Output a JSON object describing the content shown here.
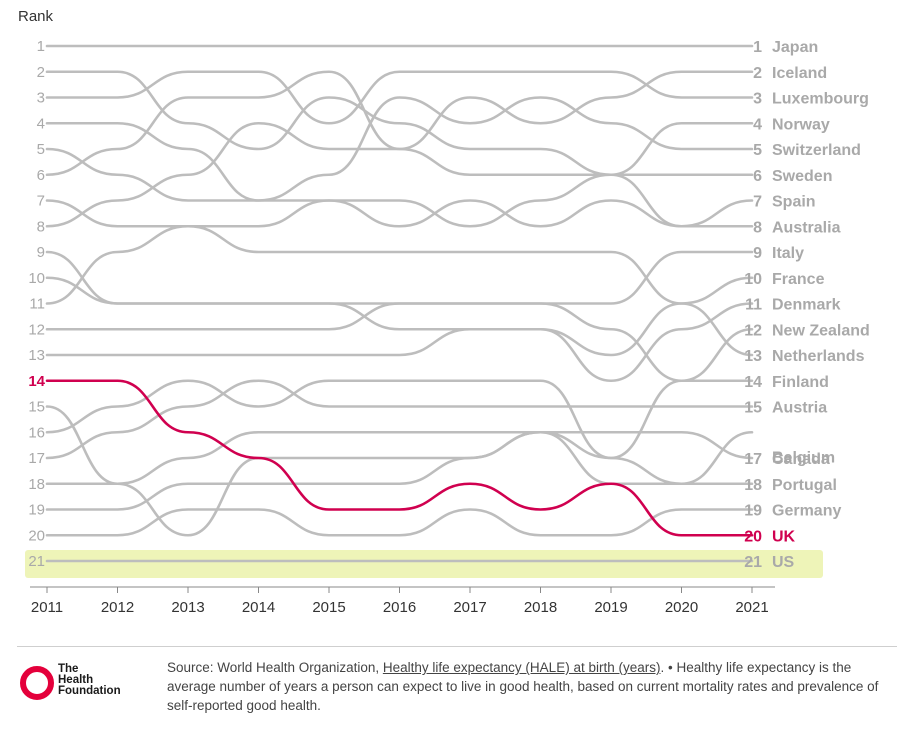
{
  "chart_data": {
    "type": "line",
    "subtype": "bump",
    "ylabel": "Rank",
    "years": [
      "2011",
      "2012",
      "2013",
      "2014",
      "2015",
      "2016",
      "2017",
      "2018",
      "2019",
      "2020",
      "2021"
    ],
    "ranks": [
      1,
      2,
      3,
      4,
      5,
      6,
      7,
      8,
      9,
      10,
      11,
      12,
      13,
      14,
      15,
      16,
      17,
      18,
      19,
      20,
      21
    ],
    "series": [
      {
        "name": "Japan",
        "values": [
          1,
          1,
          1,
          1,
          1,
          1,
          1,
          1,
          1,
          1,
          1
        ]
      },
      {
        "name": "Iceland",
        "values": [
          6,
          5,
          3,
          3,
          2,
          5,
          3,
          4,
          3,
          2,
          2
        ]
      },
      {
        "name": "Luxembourg",
        "values": [
          3,
          3,
          2,
          2,
          4,
          2,
          2,
          2,
          2,
          3,
          3
        ]
      },
      {
        "name": "Norway",
        "values": [
          2,
          2,
          4,
          5,
          3,
          4,
          5,
          5,
          6,
          4,
          4
        ]
      },
      {
        "name": "Switzerland",
        "values": [
          4,
          4,
          5,
          7,
          6,
          3,
          4,
          3,
          4,
          5,
          5
        ]
      },
      {
        "name": "Sweden",
        "values": [
          8,
          7,
          6,
          4,
          5,
          5,
          6,
          6,
          6,
          6,
          6
        ]
      },
      {
        "name": "Spain",
        "values": [
          7,
          8,
          8,
          8,
          7,
          8,
          7,
          8,
          7,
          8,
          7
        ]
      },
      {
        "name": "Australia",
        "values": [
          5,
          6,
          7,
          7,
          7,
          7,
          8,
          7,
          6,
          8,
          8
        ]
      },
      {
        "name": "Italy",
        "values": [
          9,
          11,
          11,
          11,
          11,
          11,
          11,
          11,
          11,
          9,
          9
        ]
      },
      {
        "name": "France",
        "values": [
          11,
          9,
          8,
          9,
          9,
          9,
          9,
          9,
          9,
          11,
          10
        ]
      },
      {
        "name": "Denmark",
        "values": [
          10,
          11,
          11,
          11,
          11,
          12,
          12,
          12,
          14,
          12,
          11
        ]
      },
      {
        "name": "New Zealand",
        "values": [
          12,
          12,
          12,
          12,
          12,
          11,
          11,
          11,
          12,
          14,
          12
        ]
      },
      {
        "name": "Netherlands",
        "values": [
          13,
          13,
          13,
          13,
          13,
          13,
          12,
          12,
          13,
          11,
          13
        ]
      },
      {
        "name": "Finland",
        "values": [
          16,
          15,
          14,
          15,
          14,
          14,
          14,
          14,
          17,
          14,
          14
        ]
      },
      {
        "name": "Austria",
        "values": [
          17,
          16,
          15,
          14,
          15,
          15,
          15,
          15,
          15,
          15,
          15
        ]
      },
      {
        "name": "Belgium",
        "values": [
          15,
          18,
          20,
          17,
          17,
          17,
          17,
          16,
          17,
          18,
          16
        ]
      },
      {
        "name": "Canada",
        "values": [
          18,
          18,
          17,
          16,
          16,
          16,
          16,
          16,
          16,
          16,
          17
        ]
      },
      {
        "name": "Portugal",
        "values": [
          19,
          19,
          18,
          18,
          18,
          18,
          17,
          16,
          18,
          18,
          18
        ]
      },
      {
        "name": "Germany",
        "values": [
          20,
          20,
          19,
          19,
          20,
          20,
          19,
          20,
          20,
          19,
          19
        ]
      },
      {
        "name": "UK",
        "values": [
          14,
          14,
          16,
          17,
          19,
          19,
          18,
          19,
          18,
          20,
          20
        ],
        "highlight": true,
        "color": "#d0004f"
      },
      {
        "name": "US",
        "values": [
          21,
          21,
          21,
          21,
          21,
          21,
          21,
          21,
          21,
          21,
          21
        ],
        "band": true,
        "band_color": "#eef4b8"
      }
    ]
  },
  "footer": {
    "logo_line1": "The",
    "logo_line2": "Health",
    "logo_line3": "Foundation",
    "source_prefix": "Source: World Health Organization, ",
    "source_link": "Healthy life expectancy (HALE) at birth (years)",
    "source_suffix": ". • Healthy life expectancy is the average number of years a person can expect to live in good health, based on current mortality rates and prevalence of self-reported good health."
  },
  "colors": {
    "line": "#bdbdbd",
    "highlight": "#d0004f",
    "logo": "#e4003b"
  }
}
